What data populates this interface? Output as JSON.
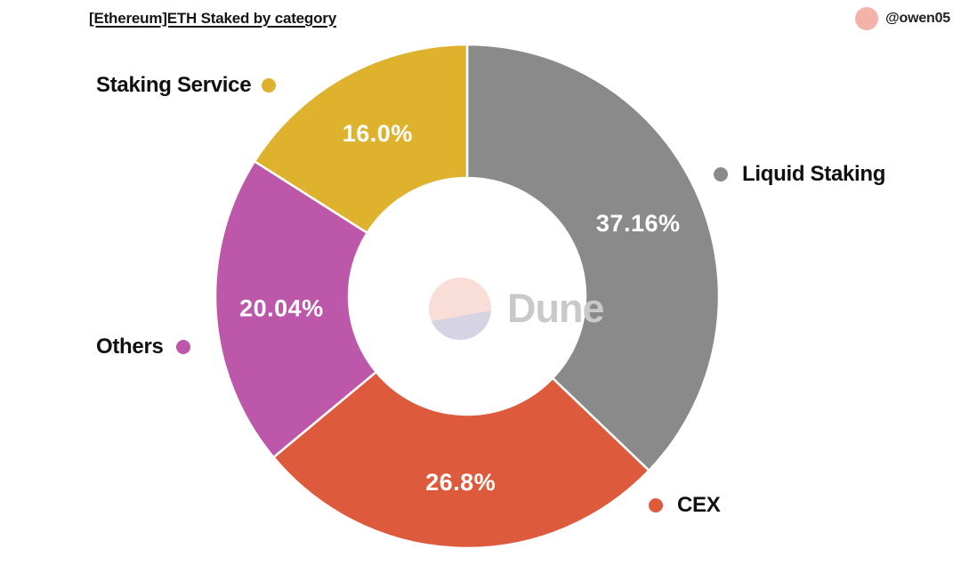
{
  "header": {
    "title": "[Ethereum]ETH Staked by category",
    "author": "@owen05",
    "avatar_color": "#f3b3a9"
  },
  "watermark": {
    "text": "Dune",
    "circle_top_color": "#f9ded7",
    "circle_bottom_color": "#d6d4e3",
    "text_color": "#c9c9c9"
  },
  "chart_data": {
    "type": "pie",
    "donut": true,
    "title": "[Ethereum]ETH Staked by category",
    "start_angle_deg": 0,
    "clockwise": true,
    "separator_color": "#ffffff",
    "slices": [
      {
        "label": "Liquid Staking",
        "value": 37.16,
        "display": "37.16%",
        "color": "#8a8a8a",
        "legend_side": "right"
      },
      {
        "label": "CEX",
        "value": 26.8,
        "display": "26.8%",
        "color": "#dd5b3c",
        "legend_side": "right"
      },
      {
        "label": "Others",
        "value": 20.04,
        "display": "20.04%",
        "color": "#bd57aa",
        "legend_side": "left"
      },
      {
        "label": "Staking Service",
        "value": 16.0,
        "display": "16.0%",
        "color": "#dfb22d",
        "legend_side": "left"
      }
    ]
  }
}
